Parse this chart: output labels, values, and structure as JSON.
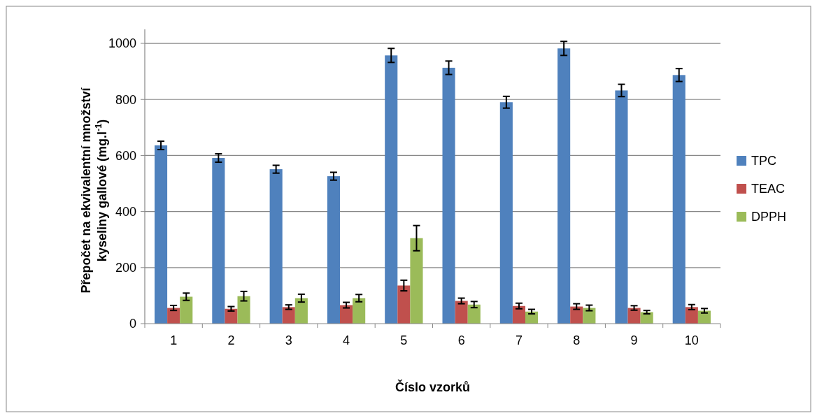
{
  "chart_data": {
    "type": "bar",
    "xlabel": "Číslo vzorků",
    "ylabel": "Přepočet na ekvivalentní množství\nkyseliny gallové (mg.l$^{-1}$)",
    "categories": [
      "1",
      "2",
      "3",
      "4",
      "5",
      "6",
      "7",
      "8",
      "9",
      "10"
    ],
    "series": [
      {
        "name": "TPC",
        "color": "#4f81bd",
        "values": [
          636,
          591,
          551,
          526,
          957,
          913,
          790,
          982,
          832,
          887
        ],
        "errors": [
          15,
          15,
          14,
          14,
          25,
          24,
          21,
          25,
          22,
          23
        ]
      },
      {
        "name": "TEAC",
        "color": "#c0504d",
        "values": [
          56,
          53,
          59,
          66,
          136,
          81,
          63,
          61,
          56,
          59
        ],
        "errors": [
          9,
          8,
          8,
          10,
          19,
          10,
          10,
          10,
          8,
          9
        ]
      },
      {
        "name": "DPPH",
        "color": "#9bbb59",
        "values": [
          96,
          98,
          91,
          91,
          305,
          68,
          43,
          56,
          41,
          46
        ],
        "errors": [
          13,
          17,
          14,
          13,
          45,
          11,
          8,
          10,
          6,
          8
        ]
      }
    ],
    "ylim": [
      0,
      1050
    ],
    "yticks": [
      0,
      200,
      400,
      600,
      800,
      1000
    ],
    "grid": "y",
    "legend": "right"
  }
}
